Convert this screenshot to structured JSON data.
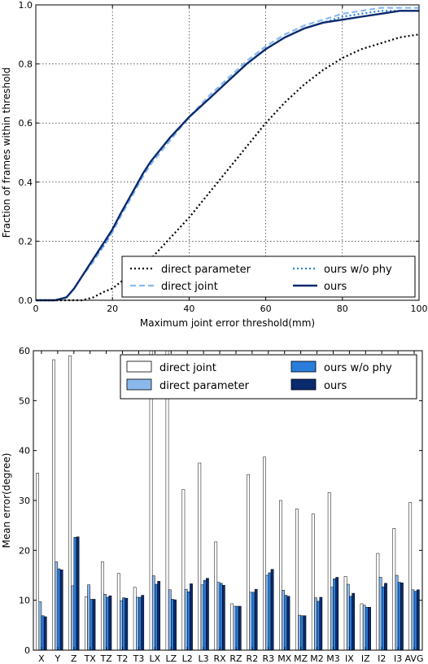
{
  "chart_data": [
    {
      "type": "line",
      "xlabel": "Maximum joint error threshold(mm)",
      "ylabel": "Fraction of frames within threshold",
      "xlim": [
        0,
        100
      ],
      "ylim": [
        0,
        1.0
      ],
      "xticks": [
        "0",
        "20",
        "40",
        "60",
        "80",
        "100"
      ],
      "yticks": [
        "0.0",
        "0.2",
        "0.4",
        "0.6",
        "0.8",
        "1.0"
      ],
      "grid": true,
      "legend_position": "lower-right",
      "x": [
        0,
        5,
        8,
        10,
        12,
        15,
        18,
        20,
        22,
        25,
        28,
        30,
        35,
        40,
        45,
        50,
        55,
        60,
        65,
        70,
        75,
        80,
        85,
        90,
        95,
        100
      ],
      "series": [
        {
          "name": "direct parameter",
          "color": "#000000",
          "style": "dotted",
          "values": [
            0,
            0,
            0,
            0,
            0,
            0.01,
            0.03,
            0.04,
            0.06,
            0.09,
            0.12,
            0.14,
            0.21,
            0.28,
            0.36,
            0.44,
            0.52,
            0.6,
            0.67,
            0.73,
            0.78,
            0.82,
            0.85,
            0.87,
            0.89,
            0.9
          ]
        },
        {
          "name": "direct joint",
          "color": "#88b9f0",
          "style": "dashed",
          "values": [
            0,
            0,
            0.01,
            0.04,
            0.08,
            0.13,
            0.19,
            0.23,
            0.28,
            0.35,
            0.42,
            0.46,
            0.54,
            0.62,
            0.69,
            0.75,
            0.81,
            0.86,
            0.9,
            0.93,
            0.95,
            0.97,
            0.98,
            0.99,
            0.99,
            0.99
          ]
        },
        {
          "name": "ours w/o phy",
          "color": "#2a7ddb",
          "style": "dotted",
          "values": [
            0,
            0,
            0.01,
            0.04,
            0.08,
            0.14,
            0.19,
            0.24,
            0.29,
            0.36,
            0.43,
            0.47,
            0.55,
            0.62,
            0.68,
            0.74,
            0.8,
            0.85,
            0.89,
            0.92,
            0.94,
            0.96,
            0.97,
            0.98,
            0.98,
            0.98
          ]
        },
        {
          "name": "ours",
          "color": "#0a2a6e",
          "style": "solid",
          "values": [
            0,
            0,
            0.01,
            0.04,
            0.08,
            0.14,
            0.2,
            0.24,
            0.29,
            0.36,
            0.43,
            0.47,
            0.55,
            0.62,
            0.68,
            0.74,
            0.8,
            0.85,
            0.89,
            0.92,
            0.94,
            0.95,
            0.96,
            0.97,
            0.98,
            0.98
          ]
        }
      ]
    },
    {
      "type": "bar",
      "ylabel": "Mean error(degree)",
      "ylim": [
        0,
        60
      ],
      "yticks": [
        "0",
        "10",
        "20",
        "30",
        "40",
        "50",
        "60"
      ],
      "grid": false,
      "legend_position": "top-right",
      "categories": [
        "X",
        "Y",
        "Z",
        "TX",
        "TZ",
        "T2",
        "T3",
        "LX",
        "LZ",
        "L2",
        "L3",
        "RX",
        "RZ",
        "R2",
        "R3",
        "MX",
        "MZ",
        "M2",
        "M3",
        "IX",
        "IZ",
        "I2",
        "I3",
        "AVG"
      ],
      "series": [
        {
          "name": "direct joint",
          "color": "#ffffff",
          "values": [
            35.5,
            58.2,
            59.0,
            10.7,
            17.7,
            15.4,
            12.6,
            60.0,
            60.0,
            32.2,
            37.5,
            21.7,
            9.3,
            35.2,
            38.7,
            30.0,
            28.3,
            27.3,
            31.6,
            14.8,
            9.3,
            19.4,
            24.4,
            29.6
          ]
        },
        {
          "name": "direct parameter",
          "color": "#8ab8ec",
          "values": [
            9.7,
            17.7,
            12.9,
            13.1,
            11.2,
            9.9,
            10.6,
            14.9,
            12.1,
            12.2,
            13.1,
            13.6,
            8.8,
            11.6,
            15.0,
            12.0,
            7.0,
            10.5,
            12.6,
            13.2,
            9.0,
            14.6,
            15.0,
            12.1
          ]
        },
        {
          "name": "ours w/o phy",
          "color": "#2a7ddb",
          "values": [
            6.9,
            16.3,
            22.6,
            10.2,
            10.6,
            10.5,
            10.6,
            13.2,
            10.2,
            11.7,
            14.0,
            13.4,
            8.8,
            11.6,
            15.5,
            11.0,
            6.9,
            9.8,
            14.3,
            10.8,
            8.6,
            12.7,
            13.6,
            11.8
          ]
        },
        {
          "name": "ours",
          "color": "#0a2a6e",
          "values": [
            6.7,
            16.1,
            22.7,
            10.2,
            10.9,
            10.4,
            11.0,
            13.8,
            10.1,
            13.3,
            14.4,
            13.0,
            8.8,
            12.2,
            16.2,
            10.8,
            6.9,
            10.6,
            14.6,
            11.4,
            8.6,
            13.4,
            13.5,
            12.1
          ]
        }
      ]
    }
  ]
}
